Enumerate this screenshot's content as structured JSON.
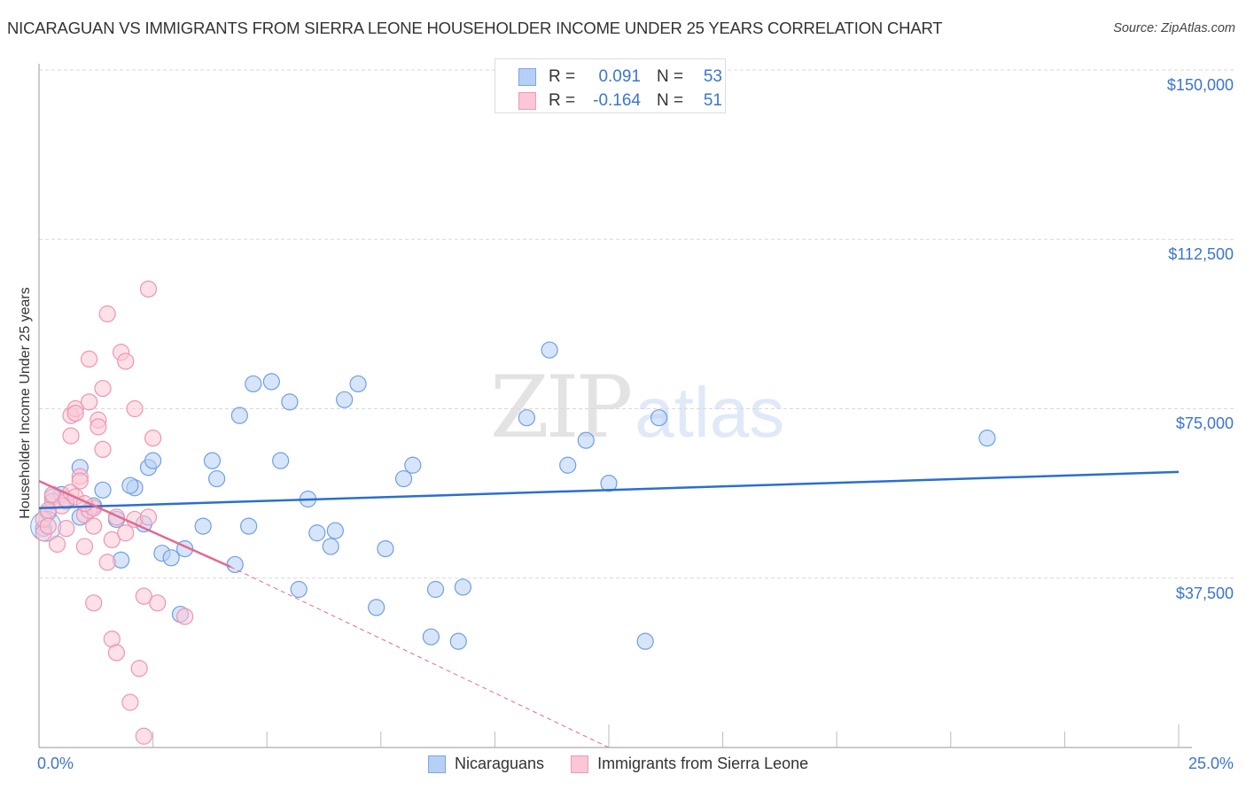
{
  "header": {
    "title": "NICARAGUAN VS IMMIGRANTS FROM SIERRA LEONE HOUSEHOLDER INCOME UNDER 25 YEARS CORRELATION CHART",
    "source": "Source: ZipAtlas.com"
  },
  "watermark": {
    "zip": "ZIP",
    "atlas": "atlas"
  },
  "legend_top": {
    "rows": [
      {
        "r_label": "R =",
        "r_value": "0.091",
        "n_label": "N =",
        "n_value": "53"
      },
      {
        "r_label": "R =",
        "r_value": "-0.164",
        "n_label": "N =",
        "n_value": "51"
      }
    ]
  },
  "legend_bottom": {
    "items": [
      {
        "label": "Nicaraguans"
      },
      {
        "label": "Immigrants from Sierra Leone"
      }
    ]
  },
  "axes": {
    "ylabel": "Householder Income Under 25 years",
    "yticks": [
      "$150,000",
      "$112,500",
      "$75,000",
      "$37,500"
    ],
    "xticks": [
      "0.0%",
      "25.0%"
    ]
  },
  "colors": {
    "blue_fill": "#b6d0f5",
    "blue_stroke": "#6f9fe3",
    "blue_line": "#2a6fd0",
    "pink_fill": "#fbc6d6",
    "pink_stroke": "#ec96b1",
    "pink_line": "#e5698f",
    "tick_label": "#3b74d1"
  },
  "chart_data": {
    "type": "scatter",
    "title": "NICARAGUAN VS IMMIGRANTS FROM SIERRA LEONE HOUSEHOLDER INCOME UNDER 25 YEARS CORRELATION CHART",
    "xlabel": "",
    "ylabel": "Householder Income Under 25 years",
    "xlim": [
      0,
      25
    ],
    "ylim": [
      0,
      150000
    ],
    "x_unit": "%",
    "y_ticks": [
      37500,
      75000,
      112500,
      150000
    ],
    "x_tick_labels": [
      "0.0%",
      "25.0%"
    ],
    "grid": "horizontal dashed",
    "legend_position": "top-center and bottom",
    "series": [
      {
        "name": "Nicaraguans",
        "R": 0.091,
        "N": 53,
        "trend": {
          "x": [
            0,
            25
          ],
          "y": [
            53000,
            61000
          ]
        },
        "points": [
          [
            0.1,
            48500
          ],
          [
            0.2,
            52000
          ],
          [
            0.5,
            56000
          ],
          [
            0.9,
            51000
          ],
          [
            0.9,
            62000
          ],
          [
            1.4,
            57000
          ],
          [
            1.7,
            50500
          ],
          [
            1.8,
            41500
          ],
          [
            2.1,
            57500
          ],
          [
            2.3,
            49500
          ],
          [
            2.4,
            62000
          ],
          [
            2.5,
            63500
          ],
          [
            2.7,
            43000
          ],
          [
            2.9,
            42000
          ],
          [
            3.2,
            44000
          ],
          [
            3.1,
            29500
          ],
          [
            3.6,
            49000
          ],
          [
            3.8,
            63500
          ],
          [
            3.9,
            59500
          ],
          [
            4.4,
            73500
          ],
          [
            4.3,
            40500
          ],
          [
            4.6,
            49000
          ],
          [
            4.7,
            80500
          ],
          [
            5.1,
            81000
          ],
          [
            5.3,
            63500
          ],
          [
            5.5,
            76500
          ],
          [
            5.7,
            35000
          ],
          [
            5.9,
            55000
          ],
          [
            6.1,
            47500
          ],
          [
            6.4,
            44500
          ],
          [
            6.5,
            48000
          ],
          [
            6.7,
            77000
          ],
          [
            7.0,
            80500
          ],
          [
            7.4,
            31000
          ],
          [
            7.6,
            44000
          ],
          [
            8.0,
            59500
          ],
          [
            8.2,
            62500
          ],
          [
            8.6,
            24500
          ],
          [
            8.7,
            35000
          ],
          [
            9.2,
            23500
          ],
          [
            9.3,
            35500
          ],
          [
            10.7,
            73000
          ],
          [
            11.2,
            88000
          ],
          [
            11.6,
            62500
          ],
          [
            12.0,
            68000
          ],
          [
            12.5,
            58500
          ],
          [
            13.3,
            23500
          ],
          [
            13.6,
            73000
          ],
          [
            20.8,
            68500
          ],
          [
            0.3,
            55500
          ],
          [
            0.6,
            54500
          ],
          [
            1.2,
            53500
          ],
          [
            2.0,
            58000
          ]
        ]
      },
      {
        "name": "Immigrants from Sierra Leone",
        "R": -0.164,
        "N": 51,
        "trend": {
          "x": [
            0,
            4.2,
            12.5
          ],
          "y": [
            59000,
            40000,
            0
          ],
          "solid_until_x": 4.2
        },
        "points": [
          [
            0.1,
            47500
          ],
          [
            0.1,
            50500
          ],
          [
            0.2,
            49000
          ],
          [
            0.3,
            54500
          ],
          [
            0.3,
            56000
          ],
          [
            0.4,
            45000
          ],
          [
            0.5,
            53500
          ],
          [
            0.6,
            55000
          ],
          [
            0.7,
            69000
          ],
          [
            0.7,
            73500
          ],
          [
            0.7,
            56500
          ],
          [
            0.8,
            75000
          ],
          [
            0.8,
            74000
          ],
          [
            0.8,
            55500
          ],
          [
            0.9,
            60000
          ],
          [
            0.9,
            59000
          ],
          [
            1.0,
            44500
          ],
          [
            1.0,
            51500
          ],
          [
            1.1,
            52500
          ],
          [
            1.1,
            86000
          ],
          [
            1.1,
            76500
          ],
          [
            1.2,
            49000
          ],
          [
            1.2,
            32000
          ],
          [
            1.2,
            53000
          ],
          [
            1.3,
            72500
          ],
          [
            1.3,
            71000
          ],
          [
            1.4,
            79500
          ],
          [
            1.4,
            66000
          ],
          [
            1.5,
            96000
          ],
          [
            1.5,
            41000
          ],
          [
            1.6,
            24000
          ],
          [
            1.6,
            46000
          ],
          [
            1.7,
            21000
          ],
          [
            1.7,
            51000
          ],
          [
            1.8,
            87500
          ],
          [
            1.9,
            85500
          ],
          [
            1.9,
            47500
          ],
          [
            2.0,
            10000
          ],
          [
            2.1,
            50500
          ],
          [
            2.1,
            75000
          ],
          [
            2.2,
            17500
          ],
          [
            2.3,
            2500
          ],
          [
            2.3,
            33500
          ],
          [
            2.4,
            101500
          ],
          [
            2.4,
            51000
          ],
          [
            2.5,
            68500
          ],
          [
            2.6,
            32000
          ],
          [
            3.2,
            29000
          ],
          [
            0.2,
            52500
          ],
          [
            0.6,
            48500
          ],
          [
            1.0,
            54000
          ]
        ]
      }
    ]
  }
}
